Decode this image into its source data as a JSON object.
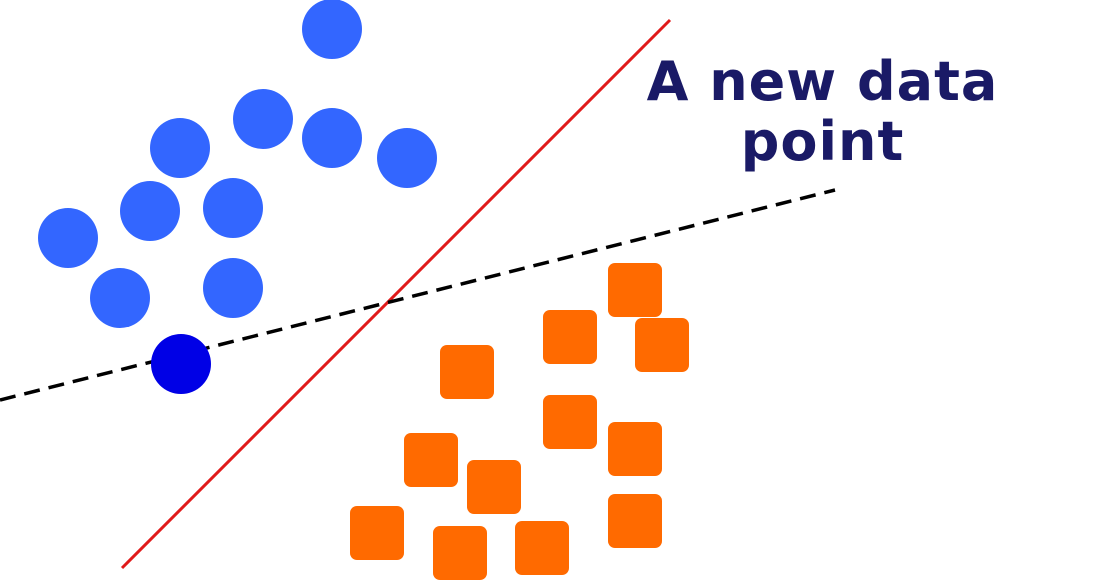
{
  "annotation": {
    "line1": "A new data",
    "line2": "point",
    "color": "#1a1a66"
  },
  "colors": {
    "class_a": "#3366ff",
    "new_point": "#0000e6",
    "class_b": "#ff6a00",
    "solid_boundary": "#e01a1a",
    "dashed_boundary": "#000000"
  },
  "shapes": {
    "class_a": "circle",
    "new_point": "circle",
    "class_b": "rounded-square"
  }
}
